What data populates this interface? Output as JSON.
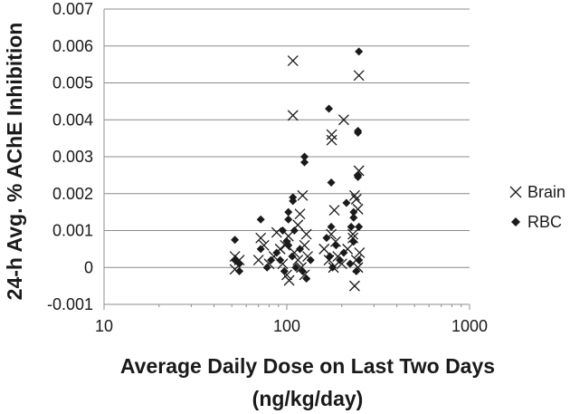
{
  "chart_data": {
    "type": "scatter",
    "x_scale": "log",
    "xlim": [
      10,
      1000
    ],
    "ylim": [
      -0.001,
      0.007
    ],
    "x_ticks": [
      "10",
      "100",
      "1000"
    ],
    "y_ticks": [
      "-0.001",
      "0",
      "0.001",
      "0.002",
      "0.003",
      "0.004",
      "0.005",
      "0.006",
      "0.007"
    ],
    "xlabel": [
      "Average Daily Dose on Last Two Days",
      "(ng/kg/day)"
    ],
    "ylabel": "24-h Avg. % AChE Inhibition",
    "grid": "horizontal",
    "legend_position": "right",
    "series": [
      {
        "name": "Brain",
        "marker": "x",
        "color": "#1a1a1a",
        "points": [
          [
            108,
            0.0056
          ],
          [
            108,
            0.00412
          ],
          [
            176,
            0.0036
          ],
          [
            176,
            0.00345
          ],
          [
            205,
            0.004
          ],
          [
            248,
            0.0052
          ],
          [
            248,
            0.00262
          ],
          [
            235,
            0.00195
          ],
          [
            240,
            0.00185
          ],
          [
            122,
            0.00195
          ],
          [
            118,
            0.00145
          ],
          [
            115,
            0.00115
          ],
          [
            182,
            0.00155
          ],
          [
            245,
            0.00158
          ],
          [
            88,
            0.00095
          ],
          [
            102,
            0.00085
          ],
          [
            128,
            0.0009
          ],
          [
            175,
            0.0009
          ],
          [
            230,
            0.0008
          ],
          [
            72,
            0.0008
          ],
          [
            52,
            0.0003
          ],
          [
            55,
            0.0002
          ],
          [
            52,
            -5e-05
          ],
          [
            75,
            0.0006
          ],
          [
            80,
            0.0001
          ],
          [
            85,
            0.0003
          ],
          [
            92,
            0.0005
          ],
          [
            95,
            0.0001
          ],
          [
            100,
            -0.0002
          ],
          [
            103,
            -0.00035
          ],
          [
            110,
            0.0004
          ],
          [
            115,
            0.0002
          ],
          [
            120,
            0.0
          ],
          [
            125,
            -0.0002
          ],
          [
            130,
            0.0003
          ],
          [
            160,
            0.0005
          ],
          [
            170,
            0.0002
          ],
          [
            180,
            0.0
          ],
          [
            190,
            0.0003
          ],
          [
            200,
            0.0001
          ],
          [
            235,
            -0.0005
          ],
          [
            240,
            0.0002
          ],
          [
            245,
            0.0
          ],
          [
            250,
            0.0004
          ],
          [
            70,
            0.0002
          ],
          [
            98,
            0.0006
          ],
          [
            125,
            0.0006
          ],
          [
            185,
            0.0007
          ],
          [
            215,
            0.0005
          ],
          [
            230,
            0.0009
          ]
        ]
      },
      {
        "name": "RBC",
        "marker": "diamond",
        "color": "#1a1a1a",
        "points": [
          [
            248,
            0.00585
          ],
          [
            170,
            0.0043
          ],
          [
            245,
            0.0037
          ],
          [
            245,
            0.00365
          ],
          [
            125,
            0.003
          ],
          [
            125,
            0.00285
          ],
          [
            175,
            0.0023
          ],
          [
            245,
            0.00245
          ],
          [
            245,
            0.0025
          ],
          [
            212,
            0.00175
          ],
          [
            108,
            0.0019
          ],
          [
            108,
            0.0018
          ],
          [
            102,
            0.0015
          ],
          [
            102,
            0.0013
          ],
          [
            232,
            0.0015
          ],
          [
            232,
            0.00135
          ],
          [
            248,
            0.0011
          ],
          [
            72,
            0.0013
          ],
          [
            52,
            0.00075
          ],
          [
            95,
            0.001
          ],
          [
            110,
            0.001
          ],
          [
            175,
            0.0011
          ],
          [
            225,
            0.0011
          ],
          [
            52,
            0.0002
          ],
          [
            55,
            0.0001
          ],
          [
            55,
            -0.0001
          ],
          [
            72,
            0.0005
          ],
          [
            78,
            0.0
          ],
          [
            82,
            0.0002
          ],
          [
            88,
            0.0004
          ],
          [
            92,
            0.0002
          ],
          [
            97,
            -0.0001
          ],
          [
            102,
            0.0006
          ],
          [
            107,
            0.0003
          ],
          [
            112,
            0.0
          ],
          [
            118,
            0.0005
          ],
          [
            122,
            -0.0001
          ],
          [
            128,
            -0.0003
          ],
          [
            135,
            0.0002
          ],
          [
            165,
            0.0008
          ],
          [
            172,
            0.0003
          ],
          [
            178,
            0.0
          ],
          [
            186,
            0.0006
          ],
          [
            195,
            0.0002
          ],
          [
            205,
            0.0004
          ],
          [
            222,
            0.0001
          ],
          [
            232,
            0.0007
          ],
          [
            240,
            -0.0001
          ],
          [
            248,
            0.0002
          ],
          [
            100,
            0.0007
          ]
        ]
      }
    ]
  }
}
